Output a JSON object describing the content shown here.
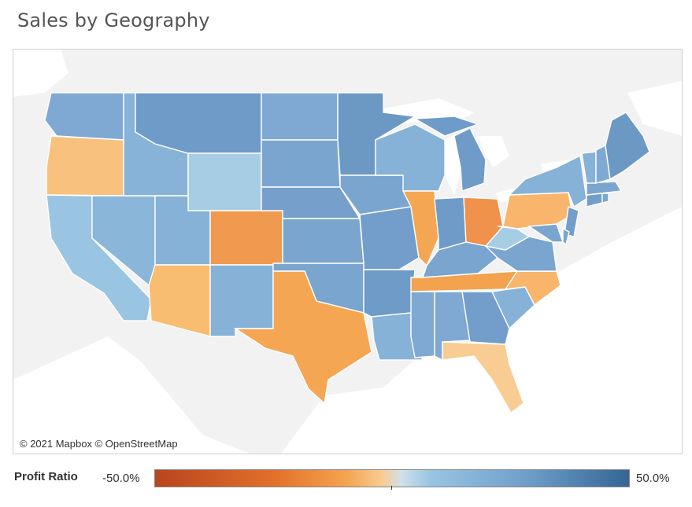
{
  "title": "Sales by Geography",
  "attribution": "© 2021 Mapbox © OpenStreetMap",
  "legend": {
    "label": "Profit Ratio",
    "min_label": "-50.0%",
    "max_label": "50.0%",
    "colors": [
      "#b8451e",
      "#e2702a",
      "#f4a24e",
      "#f8cc92",
      "#cfe1ea",
      "#99c5e2",
      "#6f9fca",
      "#356595"
    ]
  },
  "map": {
    "land_color": "#f2f2f2",
    "water_color": "#ffffff",
    "negative_states": [
      "Oregon",
      "Colorado",
      "Arizona",
      "Texas",
      "Illinois",
      "Ohio",
      "Pennsylvania",
      "Tennessee",
      "North Carolina",
      "Florida"
    ],
    "positive_states": [
      "Washington",
      "California",
      "Nevada",
      "Idaho",
      "Montana",
      "Wyoming",
      "Utah",
      "New Mexico",
      "North Dakota",
      "South Dakota",
      "Nebraska",
      "Kansas",
      "Oklahoma",
      "Minnesota",
      "Iowa",
      "Missouri",
      "Arkansas",
      "Louisiana",
      "Wisconsin",
      "Michigan",
      "Indiana",
      "Kentucky",
      "Mississippi",
      "Alabama",
      "Georgia",
      "South Carolina",
      "Virginia",
      "West Virginia",
      "Maryland",
      "Delaware",
      "New Jersey",
      "New York",
      "Connecticut",
      "Rhode Island",
      "Massachusetts",
      "Vermont",
      "New Hampshire",
      "Maine"
    ]
  }
}
